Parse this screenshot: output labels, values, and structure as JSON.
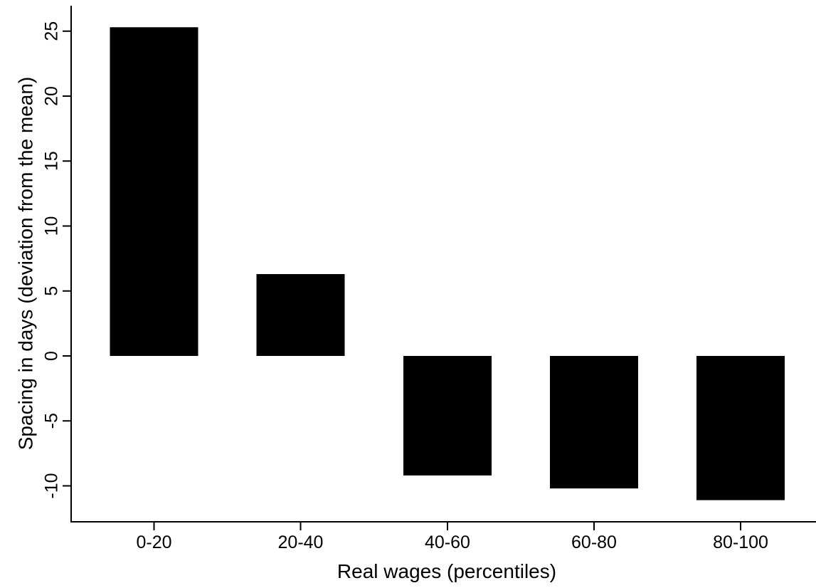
{
  "chart_data": {
    "type": "bar",
    "title": "",
    "xlabel": "Real wages (percentiles)",
    "ylabel": "Spacing in days (deviation from the mean)",
    "categories": [
      "0-20",
      "20-40",
      "40-60",
      "60-80",
      "80-100"
    ],
    "values": [
      25.3,
      6.3,
      -9.2,
      -10.2,
      -11.1
    ],
    "ylim": [
      -12.5,
      27
    ],
    "yticks": [
      25,
      20,
      15,
      10,
      5,
      0,
      -5,
      -10
    ],
    "ytick_labels": [
      "25",
      "20",
      "15",
      "10",
      "5",
      "0",
      "-5",
      "-10"
    ],
    "bar_color": "#000000",
    "grid": false,
    "legend": "none"
  }
}
